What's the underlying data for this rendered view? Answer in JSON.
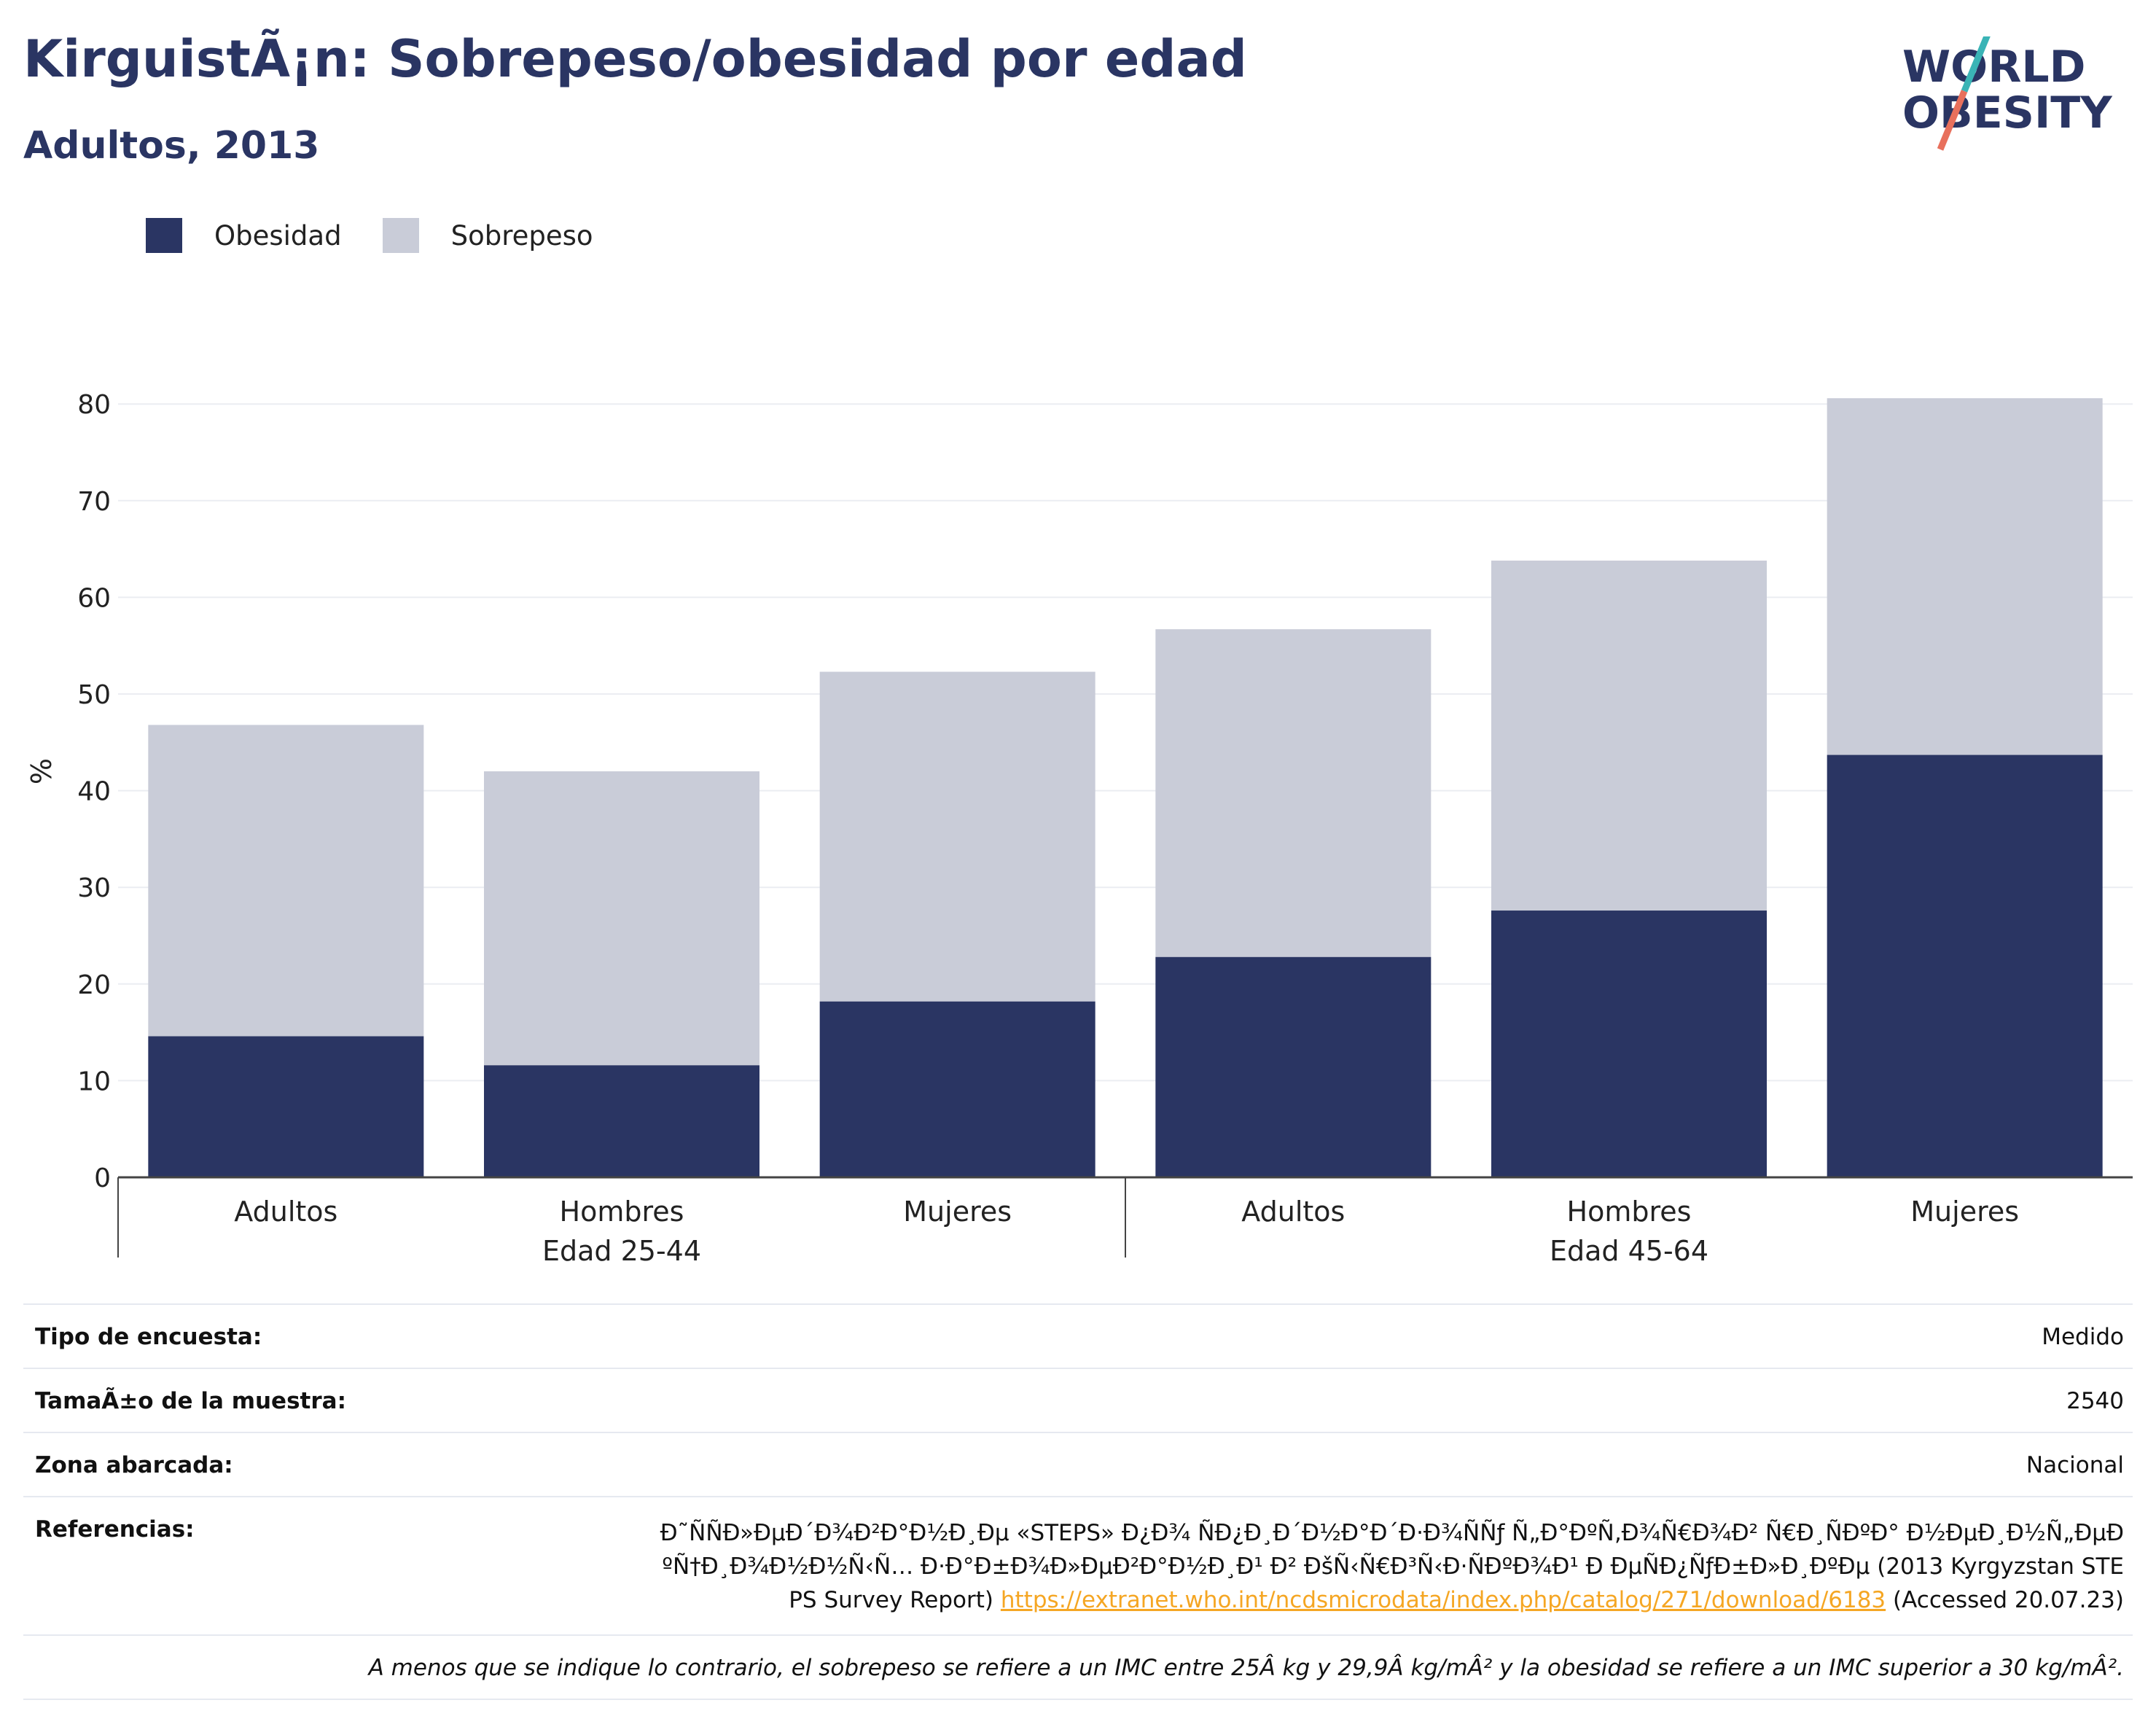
{
  "header": {
    "title": "KirguistÃ¡n: Sobrepeso/obesidad por edad",
    "subtitle": "Adultos, 2013",
    "logo_line1": "WORLD",
    "logo_line2": "OBESITY"
  },
  "colors": {
    "obesity": "#2a3563",
    "overweight": "#c9ccd8",
    "title": "#2a3563",
    "link": "#f5a623",
    "logo_teal": "#3ab4b6",
    "logo_coral": "#e8705c"
  },
  "legend": [
    {
      "label": "Obesidad",
      "color": "#2a3563"
    },
    {
      "label": "Sobrepeso",
      "color": "#c9ccd8"
    }
  ],
  "chart_data": {
    "type": "bar",
    "stacked": true,
    "ylabel": "%",
    "ylim": [
      0,
      85
    ],
    "yticks": [
      0,
      10,
      20,
      30,
      40,
      50,
      60,
      70,
      80
    ],
    "grid": true,
    "legend_position": "top-left",
    "categories": [
      "Adultos",
      "Hombres",
      "Mujeres",
      "Adultos",
      "Hombres",
      "Mujeres"
    ],
    "groups": [
      {
        "label": "Edad 25-44",
        "count": 3
      },
      {
        "label": "Edad 45-64",
        "count": 3
      }
    ],
    "series": [
      {
        "name": "Obesidad",
        "values": [
          14.6,
          11.6,
          18.2,
          22.8,
          27.6,
          43.7
        ]
      },
      {
        "name": "Sobrepeso",
        "values": [
          32.2,
          30.4,
          34.1,
          33.9,
          36.2,
          36.9
        ]
      }
    ]
  },
  "info": {
    "survey_type_label": "Tipo de encuesta:",
    "survey_type_value": "Medido",
    "sample_size_label": "TamaÃ±o de la muestra:",
    "sample_size_value": "2540",
    "coverage_label": "Zona abarcada:",
    "coverage_value": "Nacional",
    "references_label": "Referencias:",
    "references_text": "Ð˜ÑÑÐ»ÐµÐ´Ð¾Ð²Ð°Ð½Ð¸Ðµ «STEPS» Ð¿Ð¾ ÑÐ¿Ð¸Ð´Ð½Ð°Ð´Ð·Ð¾ÑÑƒ Ñ„Ð°ÐºÑ‚Ð¾Ñ€Ð¾Ð² Ñ€Ð¸ÑÐºÐ° Ð½ÐµÐ¸Ð½Ñ„ÐµÐºÑ†Ð¸Ð¾Ð½Ð½Ñ‹Ñ… Ð·Ð°Ð±Ð¾Ð»ÐµÐ²Ð°Ð½Ð¸Ð¹ Ð² ÐšÑ‹Ñ€Ð³Ñ‹Ð·ÑÐºÐ¾Ð¹ Ð ÐµÑÐ¿ÑƒÐ±Ð»Ð¸ÐºÐµ (2013 Kyrgyzstan STEPS Survey Report)",
    "references_link": "https://extranet.who.int/ncdsmicrodata/index.php/catalog/271/download/6183",
    "references_accessed": "(Accessed 20.07.23)",
    "footnote": "A menos que se indique lo contrario, el sobrepeso se refiere a un IMC entre 25Â kg y 29,9Â kg/mÂ² y la obesidad se refiere a un IMC superior a 30 kg/mÂ²."
  }
}
